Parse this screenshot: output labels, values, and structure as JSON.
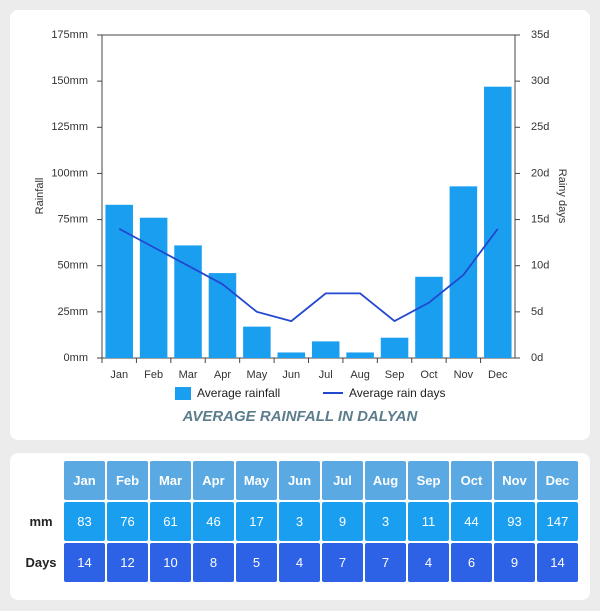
{
  "chart_data": {
    "type": "combo",
    "title": "AVERAGE RAINFALL IN DALYAN",
    "y_label": "Rainfall",
    "y2_label": "Rainy days",
    "categories": [
      "Jan",
      "Feb",
      "Mar",
      "Apr",
      "May",
      "Jun",
      "Jul",
      "Aug",
      "Sep",
      "Oct",
      "Nov",
      "Dec"
    ],
    "series": [
      {
        "name": "Average rainfall",
        "type": "bar",
        "color": "#1a9ff0",
        "values": [
          83,
          76,
          61,
          46,
          17,
          3,
          9,
          3,
          11,
          44,
          93,
          147
        ]
      },
      {
        "name": "Average rain days",
        "type": "line",
        "axis": "y2",
        "color": "#2348d0",
        "values": [
          14,
          12,
          10,
          8,
          5,
          4,
          7,
          7,
          4,
          6,
          9,
          14
        ]
      }
    ],
    "ylim": [
      0,
      175
    ],
    "yticks": [
      {
        "value": 0,
        "label": "0mm"
      },
      {
        "value": 25,
        "label": "25mm"
      },
      {
        "value": 50,
        "label": "50mm"
      },
      {
        "value": 75,
        "label": "75mm"
      },
      {
        "value": 100,
        "label": "100mm"
      },
      {
        "value": 125,
        "label": "125mm"
      },
      {
        "value": 150,
        "label": "150mm"
      },
      {
        "value": 175,
        "label": "175mm"
      }
    ],
    "y2lim": [
      0,
      35
    ],
    "y2ticks": [
      {
        "value": 0,
        "label": "0d"
      },
      {
        "value": 5,
        "label": "5d"
      },
      {
        "value": 10,
        "label": "10d"
      },
      {
        "value": 15,
        "label": "15d"
      },
      {
        "value": 20,
        "label": "20d"
      },
      {
        "value": 25,
        "label": "25d"
      },
      {
        "value": 30,
        "label": "30d"
      },
      {
        "value": 35,
        "label": "35d"
      }
    ],
    "grid": false,
    "legend": "bottom"
  },
  "table": {
    "row_labels": [
      "mm",
      "Days"
    ]
  }
}
